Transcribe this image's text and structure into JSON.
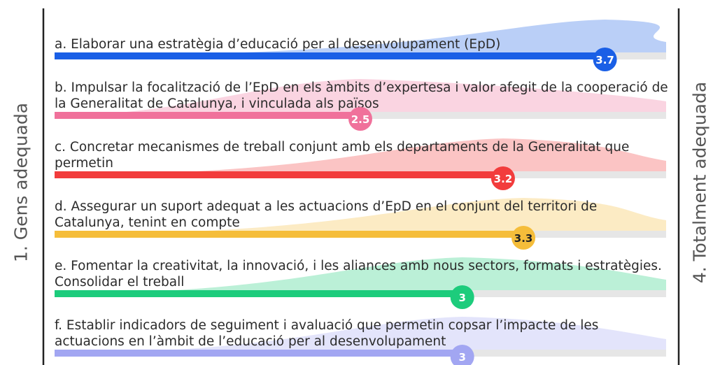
{
  "chart_data": {
    "type": "bar",
    "categories": [
      "a. Elaborar una estratègia d’educació per al desenvolupament (EpD)",
      "b. Impulsar la focalització de l’EpD en els àmbits d’expertesa i valor afegit de la cooperació de la Generalitat de Catalunya, i vinculada als països",
      "c. Concretar mecanismes de treball conjunt amb els departaments de la Generalitat que permetin",
      "d. Assegurar un suport adequat a les actuacions d’EpD en el conjunt del territori de Catalunya, tenint en compte",
      "e. Fomentar la creativitat, la innovació, i les aliances amb nous sectors, formats i estratègies. Consolidar el treball",
      "f. Establir indicadors de seguiment i avaluació que permetin copsar l’impacte de les actuacions en l’àmbit de l’educació per al desenvolupament"
    ],
    "values": [
      3.7,
      2.5,
      3.2,
      3.3,
      3,
      3
    ],
    "colors": [
      "#1a5fe6",
      "#f0719b",
      "#f23c3c",
      "#f5bd3a",
      "#1dcc7c",
      "#a2a6f2"
    ],
    "xlim": [
      1,
      4
    ],
    "min_label": "1. Gens adequada",
    "max_label": "4. Totalment adequada"
  }
}
